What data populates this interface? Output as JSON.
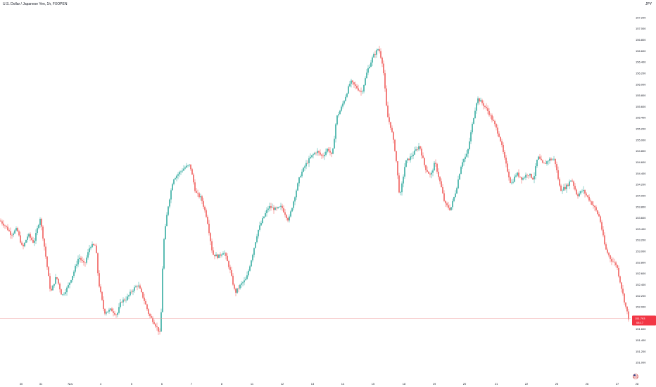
{
  "header": {
    "title": "U.S. Dollar / Japanese Yen, 1h, FXOPEN",
    "currency": "JPY"
  },
  "colors": {
    "up": "#26a69a",
    "down": "#ef5350",
    "price_line": "#ef9a9a",
    "last_tag": "#f23645",
    "axis_text": "#131722"
  },
  "chart_data": {
    "type": "candlestick",
    "title": "U.S. Dollar / Japanese Yen, 1h, FXOPEN",
    "ylim": [
      150.8,
      157.3
    ],
    "y_ticks": [
      "151.000",
      "151.200",
      "151.400",
      "151.600",
      "151.800",
      "152.000",
      "152.200",
      "152.400",
      "152.600",
      "152.800",
      "153.000",
      "153.200",
      "153.400",
      "153.600",
      "153.800",
      "154.000",
      "154.200",
      "154.400",
      "154.600",
      "154.800",
      "155.000",
      "155.200",
      "155.400",
      "155.600",
      "155.800",
      "156.000",
      "156.200",
      "156.400",
      "156.600",
      "156.800",
      "157.000",
      "157.200"
    ],
    "x_ticks": [
      "30",
      "31",
      "Nov",
      "4",
      "5",
      "6",
      "7",
      "8",
      "11",
      "12",
      "13",
      "14",
      "15",
      "18",
      "19",
      "20",
      "21",
      "22",
      "25",
      "26",
      "27",
      "28"
    ],
    "last_price": "151.793",
    "countdown": "08:17",
    "anchors": [
      [
        0,
        153.55
      ],
      [
        8,
        153.45
      ],
      [
        16,
        153.3
      ],
      [
        24,
        153.4
      ],
      [
        32,
        153.05
      ],
      [
        40,
        153.3
      ],
      [
        48,
        153.15
      ],
      [
        57,
        153.6
      ],
      [
        64,
        153.0
      ],
      [
        72,
        152.25
      ],
      [
        80,
        152.55
      ],
      [
        88,
        152.2
      ],
      [
        96,
        152.35
      ],
      [
        104,
        152.6
      ],
      [
        112,
        152.9
      ],
      [
        120,
        152.75
      ],
      [
        128,
        153.1
      ],
      [
        136,
        153.1
      ],
      [
        140,
        152.45
      ],
      [
        148,
        151.9
      ],
      [
        158,
        151.95
      ],
      [
        166,
        151.85
      ],
      [
        172,
        152.1
      ],
      [
        180,
        152.15
      ],
      [
        188,
        152.3
      ],
      [
        196,
        152.4
      ],
      [
        204,
        152.15
      ],
      [
        212,
        151.85
      ],
      [
        220,
        151.7
      ],
      [
        228,
        151.5
      ],
      [
        232,
        153.1
      ],
      [
        238,
        153.75
      ],
      [
        246,
        154.3
      ],
      [
        254,
        154.4
      ],
      [
        262,
        154.5
      ],
      [
        270,
        154.55
      ],
      [
        278,
        154.05
      ],
      [
        286,
        153.95
      ],
      [
        294,
        153.6
      ],
      [
        302,
        152.95
      ],
      [
        310,
        152.9
      ],
      [
        318,
        153.0
      ],
      [
        326,
        152.7
      ],
      [
        334,
        152.25
      ],
      [
        342,
        152.4
      ],
      [
        350,
        152.5
      ],
      [
        358,
        152.9
      ],
      [
        366,
        153.35
      ],
      [
        374,
        153.6
      ],
      [
        382,
        153.8
      ],
      [
        392,
        153.75
      ],
      [
        400,
        153.8
      ],
      [
        410,
        153.55
      ],
      [
        418,
        153.95
      ],
      [
        426,
        154.35
      ],
      [
        434,
        154.55
      ],
      [
        442,
        154.7
      ],
      [
        450,
        154.8
      ],
      [
        458,
        154.7
      ],
      [
        466,
        154.85
      ],
      [
        472,
        154.7
      ],
      [
        478,
        155.4
      ],
      [
        484,
        155.55
      ],
      [
        490,
        155.75
      ],
      [
        498,
        156.05
      ],
      [
        506,
        155.95
      ],
      [
        514,
        155.85
      ],
      [
        522,
        156.25
      ],
      [
        530,
        156.5
      ],
      [
        538,
        156.65
      ],
      [
        544,
        156.35
      ],
      [
        550,
        155.45
      ],
      [
        556,
        155.2
      ],
      [
        562,
        154.75
      ],
      [
        568,
        153.95
      ],
      [
        576,
        154.6
      ],
      [
        584,
        154.7
      ],
      [
        590,
        154.8
      ],
      [
        596,
        154.9
      ],
      [
        604,
        154.5
      ],
      [
        612,
        154.35
      ],
      [
        618,
        154.6
      ],
      [
        626,
        154.2
      ],
      [
        632,
        153.85
      ],
      [
        640,
        153.75
      ],
      [
        648,
        154.1
      ],
      [
        656,
        154.6
      ],
      [
        664,
        154.75
      ],
      [
        672,
        155.35
      ],
      [
        678,
        155.75
      ],
      [
        686,
        155.65
      ],
      [
        694,
        155.5
      ],
      [
        702,
        155.3
      ],
      [
        710,
        155.05
      ],
      [
        718,
        154.6
      ],
      [
        726,
        154.2
      ],
      [
        734,
        154.4
      ],
      [
        742,
        154.3
      ],
      [
        750,
        154.4
      ],
      [
        758,
        154.3
      ],
      [
        764,
        154.7
      ],
      [
        772,
        154.55
      ],
      [
        780,
        154.65
      ],
      [
        788,
        154.65
      ],
      [
        796,
        154.1
      ],
      [
        804,
        154.15
      ],
      [
        812,
        154.3
      ],
      [
        820,
        154.0
      ],
      [
        828,
        154.1
      ],
      [
        836,
        153.95
      ],
      [
        844,
        153.8
      ],
      [
        852,
        153.6
      ],
      [
        860,
        153.05
      ],
      [
        868,
        152.85
      ],
      [
        876,
        152.75
      ],
      [
        882,
        152.4
      ],
      [
        888,
        152.05
      ],
      [
        894,
        151.75
      ]
    ]
  }
}
